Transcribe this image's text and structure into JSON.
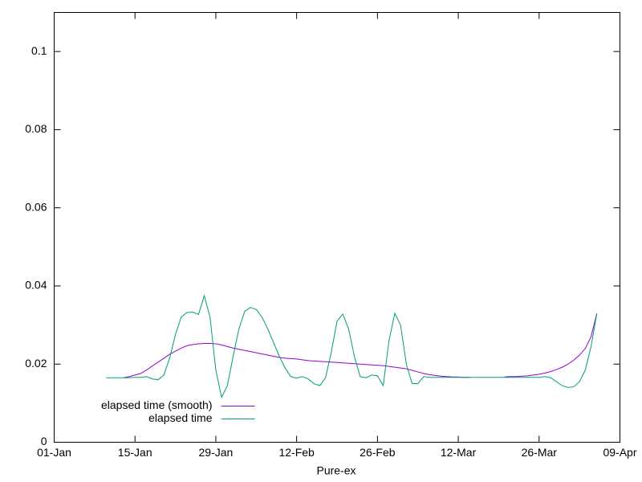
{
  "chart_data": {
    "type": "line",
    "xlabel": "Pure-ex",
    "legend": "bottom left",
    "x": [
      9,
      10,
      11,
      12,
      13,
      14,
      15,
      16,
      17,
      18,
      19,
      20,
      21,
      22,
      23,
      24,
      25,
      26,
      27,
      28,
      29,
      30,
      31,
      32,
      33,
      34,
      35,
      36,
      37,
      38,
      39,
      40,
      41,
      42,
      43,
      44,
      45,
      46,
      47,
      48,
      49,
      50,
      51,
      52,
      53,
      54,
      55,
      56,
      57,
      58,
      59,
      60,
      61,
      62,
      63,
      64,
      65,
      66,
      67,
      68,
      69,
      70,
      71,
      72,
      73,
      74,
      75,
      76,
      77,
      78,
      79,
      80,
      81,
      82,
      83,
      84,
      85,
      86,
      87,
      88,
      89,
      90,
      91,
      92,
      93,
      94
    ],
    "series": [
      {
        "name": "elapsed time (smooth)",
        "color": "#9400d3",
        "values": [
          null,
          null,
          null,
          0.0165,
          0.0168,
          0.0172,
          0.0176,
          0.0185,
          0.0195,
          0.0205,
          0.0215,
          0.0225,
          0.0233,
          0.0241,
          0.0247,
          0.025,
          0.0252,
          0.0253,
          0.0253,
          0.0252,
          0.0249,
          0.0245,
          0.0241,
          0.0238,
          0.0235,
          0.0232,
          0.0229,
          0.0226,
          0.0223,
          0.022,
          0.0217,
          0.0215,
          0.0214,
          0.0213,
          0.0211,
          0.0209,
          0.0208,
          0.0207,
          0.0206,
          0.0205,
          0.0204,
          0.0203,
          0.0202,
          0.0201,
          0.02,
          0.0199,
          0.0198,
          0.0197,
          0.0196,
          0.0194,
          0.0192,
          0.019,
          0.0188,
          0.0184,
          0.018,
          0.0176,
          0.0173,
          0.0171,
          0.0169,
          0.0168,
          0.0167,
          0.0167,
          0.0166,
          0.0166,
          null,
          null,
          null,
          null,
          null,
          0.0167,
          0.0168,
          0.0168,
          0.0169,
          0.017,
          0.0172,
          0.0174,
          0.0177,
          0.0181,
          0.0186,
          0.0192,
          0.02,
          0.021,
          0.0223,
          0.024,
          0.027,
          0.033
        ]
      },
      {
        "name": "elapsed time",
        "color": "#009e73",
        "values": [
          0.0165,
          0.0165,
          0.0165,
          0.0165,
          0.0165,
          0.0166,
          0.0166,
          0.0168,
          0.0162,
          0.016,
          0.0172,
          0.0215,
          0.0275,
          0.032,
          0.0332,
          0.0333,
          0.0327,
          0.0375,
          0.032,
          0.0185,
          0.0115,
          0.0145,
          0.022,
          0.029,
          0.0335,
          0.0345,
          0.034,
          0.032,
          0.029,
          0.0255,
          0.022,
          0.019,
          0.0168,
          0.0164,
          0.0168,
          0.0162,
          0.015,
          0.0145,
          0.0165,
          0.023,
          0.031,
          0.0328,
          0.029,
          0.022,
          0.0168,
          0.0165,
          0.0172,
          0.017,
          0.0145,
          0.026,
          0.033,
          0.03,
          0.02,
          0.015,
          0.015,
          0.0168,
          0.0166,
          0.0166,
          0.0166,
          0.0166,
          0.0166,
          0.0166,
          0.0166,
          0.0166,
          0.0166,
          0.0166,
          0.0166,
          0.0166,
          0.0166,
          0.0166,
          0.0166,
          0.0166,
          0.0166,
          0.0166,
          0.0166,
          0.0166,
          0.0168,
          0.0165,
          0.0155,
          0.0145,
          0.014,
          0.0142,
          0.0155,
          0.0185,
          0.0245,
          0.033
        ]
      }
    ],
    "xlim": [
      0,
      98
    ],
    "xticks": [
      {
        "value": 0,
        "label": "01-Jan"
      },
      {
        "value": 14,
        "label": "15-Jan"
      },
      {
        "value": 28,
        "label": "29-Jan"
      },
      {
        "value": 42,
        "label": "12-Feb"
      },
      {
        "value": 56,
        "label": "26-Feb"
      },
      {
        "value": 70,
        "label": "12-Mar"
      },
      {
        "value": 84,
        "label": "26-Mar"
      },
      {
        "value": 98,
        "label": "09-Apr"
      }
    ],
    "ylim": [
      0,
      0.11
    ],
    "yticks": [
      0,
      0.02,
      0.04,
      0.06,
      0.08,
      0.1
    ]
  }
}
